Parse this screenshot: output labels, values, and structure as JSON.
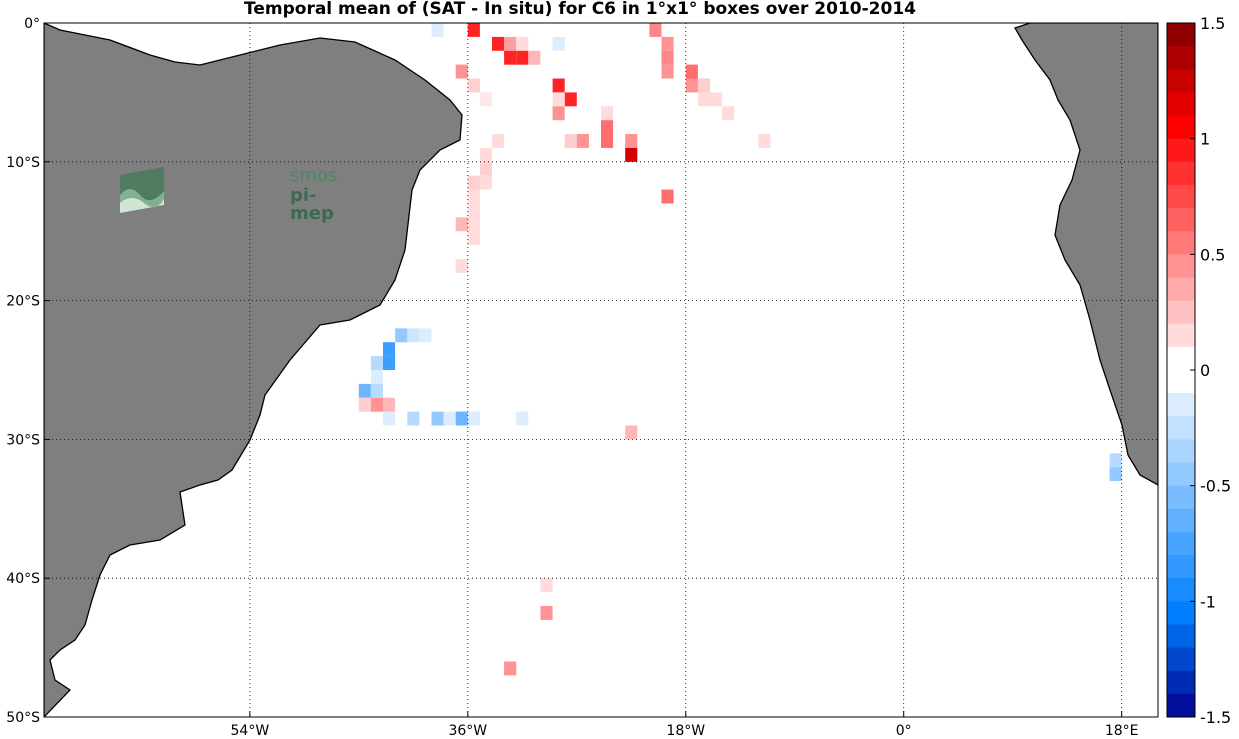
{
  "chart_data": {
    "type": "heatmap",
    "title": "Temporal mean of (SAT - In situ) for C6 in 1°x1° boxes over 2010-2014",
    "lon_range": [
      -71,
      21
    ],
    "lat_range": [
      -50,
      0
    ],
    "x_ticks": [
      "54°W",
      "36°W",
      "18°W",
      "0°",
      "18°E"
    ],
    "y_ticks": [
      "0°",
      "10°S",
      "20°S",
      "30°S",
      "40°S",
      "50°S"
    ],
    "grid": "dotted",
    "colorbar": {
      "min": -1.5,
      "max": 1.5,
      "levels": 30,
      "ticks": [
        "1.5",
        "1",
        "0.5",
        "0",
        "-0.5",
        "-1",
        "-1.5"
      ],
      "low_color": "#00008f",
      "mid_color": "#ffffff",
      "high_color": "#800000"
    },
    "cells": [
      {
        "lon": -35.5,
        "lat": -0.5,
        "v": 0.9
      },
      {
        "lon": -33.5,
        "lat": -1.5,
        "v": 0.9
      },
      {
        "lon": -32.5,
        "lat": -1.5,
        "v": 0.4
      },
      {
        "lon": -31.5,
        "lat": -1.5,
        "v": 0.15
      },
      {
        "lon": -32.5,
        "lat": -2.5,
        "v": 0.9
      },
      {
        "lon": -31.5,
        "lat": -2.5,
        "v": 0.9
      },
      {
        "lon": -30.5,
        "lat": -2.5,
        "v": 0.3
      },
      {
        "lon": -28.5,
        "lat": -1.5,
        "v": -0.15
      },
      {
        "lon": -38.5,
        "lat": -0.5,
        "v": -0.15
      },
      {
        "lon": -36.5,
        "lat": -3.5,
        "v": 0.45
      },
      {
        "lon": -35.5,
        "lat": -4.5,
        "v": 0.2
      },
      {
        "lon": -34.5,
        "lat": -5.5,
        "v": 0.1
      },
      {
        "lon": -28.5,
        "lat": -4.5,
        "v": 0.9
      },
      {
        "lon": -27.5,
        "lat": -5.5,
        "v": 0.9
      },
      {
        "lon": -28.5,
        "lat": -5.5,
        "v": 0.15
      },
      {
        "lon": -28.5,
        "lat": -6.5,
        "v": 0.45
      },
      {
        "lon": -24.5,
        "lat": -6.5,
        "v": 0.15
      },
      {
        "lon": -24.5,
        "lat": -7.5,
        "v": 0.6
      },
      {
        "lon": -24.5,
        "lat": -8.5,
        "v": 0.6
      },
      {
        "lon": -27.5,
        "lat": -8.5,
        "v": 0.2
      },
      {
        "lon": -26.5,
        "lat": -8.5,
        "v": 0.45
      },
      {
        "lon": -22.5,
        "lat": -8.5,
        "v": 0.45
      },
      {
        "lon": -22.5,
        "lat": -9.5,
        "v": 1.2
      },
      {
        "lon": -20.5,
        "lat": -0.5,
        "v": 0.5
      },
      {
        "lon": -19.5,
        "lat": -1.5,
        "v": 0.45
      },
      {
        "lon": -19.5,
        "lat": -2.5,
        "v": 0.5
      },
      {
        "lon": -19.5,
        "lat": -3.5,
        "v": 0.45
      },
      {
        "lon": -17.5,
        "lat": -3.5,
        "v": 0.6
      },
      {
        "lon": -17.5,
        "lat": -4.5,
        "v": 0.45
      },
      {
        "lon": -16.5,
        "lat": -4.5,
        "v": 0.2
      },
      {
        "lon": -16.5,
        "lat": -5.5,
        "v": 0.15
      },
      {
        "lon": -15.5,
        "lat": -5.5,
        "v": 0.15
      },
      {
        "lon": -14.5,
        "lat": -6.5,
        "v": 0.15
      },
      {
        "lon": -11.5,
        "lat": -8.5,
        "v": 0.15
      },
      {
        "lon": -19.5,
        "lat": -12.5,
        "v": 0.6
      },
      {
        "lon": -33.5,
        "lat": -8.5,
        "v": 0.15
      },
      {
        "lon": -34.5,
        "lat": -9.5,
        "v": 0.15
      },
      {
        "lon": -34.5,
        "lat": -10.5,
        "v": 0.2
      },
      {
        "lon": -34.5,
        "lat": -11.5,
        "v": 0.15
      },
      {
        "lon": -35.5,
        "lat": -11.5,
        "v": 0.2
      },
      {
        "lon": -35.5,
        "lat": -12.5,
        "v": 0.15
      },
      {
        "lon": -35.5,
        "lat": -13.5,
        "v": 0.15
      },
      {
        "lon": -35.5,
        "lat": -14.5,
        "v": 0.15
      },
      {
        "lon": -35.5,
        "lat": -15.5,
        "v": 0.15
      },
      {
        "lon": -36.5,
        "lat": -14.5,
        "v": 0.3
      },
      {
        "lon": -36.5,
        "lat": -17.5,
        "v": 0.15
      },
      {
        "lon": -39.5,
        "lat": -22.5,
        "v": -0.15
      },
      {
        "lon": -40.5,
        "lat": -22.5,
        "v": -0.2
      },
      {
        "lon": -41.5,
        "lat": -22.5,
        "v": -0.45
      },
      {
        "lon": -42.5,
        "lat": -23.5,
        "v": -0.8
      },
      {
        "lon": -42.5,
        "lat": -24.5,
        "v": -0.8
      },
      {
        "lon": -43.5,
        "lat": -24.5,
        "v": -0.3
      },
      {
        "lon": -43.5,
        "lat": -25.5,
        "v": -0.15
      },
      {
        "lon": -44.5,
        "lat": -26.5,
        "v": -0.6
      },
      {
        "lon": -43.5,
        "lat": -26.5,
        "v": -0.3
      },
      {
        "lon": -44.5,
        "lat": -27.5,
        "v": 0.2
      },
      {
        "lon": -43.5,
        "lat": -27.5,
        "v": 0.45
      },
      {
        "lon": -42.5,
        "lat": -27.5,
        "v": 0.3
      },
      {
        "lon": -42.5,
        "lat": -28.5,
        "v": -0.15
      },
      {
        "lon": -40.5,
        "lat": -28.5,
        "v": -0.3
      },
      {
        "lon": -38.5,
        "lat": -28.5,
        "v": -0.45
      },
      {
        "lon": -37.5,
        "lat": -28.5,
        "v": -0.15
      },
      {
        "lon": -36.5,
        "lat": -28.5,
        "v": -0.6
      },
      {
        "lon": -35.5,
        "lat": -28.5,
        "v": -0.15
      },
      {
        "lon": -31.5,
        "lat": -28.5,
        "v": -0.15
      },
      {
        "lon": -22.5,
        "lat": -29.5,
        "v": 0.3
      },
      {
        "lon": -29.5,
        "lat": -40.5,
        "v": 0.15
      },
      {
        "lon": -29.5,
        "lat": -42.5,
        "v": 0.45
      },
      {
        "lon": -32.5,
        "lat": -46.5,
        "v": 0.45
      },
      {
        "lon": 17.5,
        "lat": -31.5,
        "v": -0.3
      },
      {
        "lon": 17.5,
        "lat": -32.5,
        "v": -0.45
      }
    ]
  },
  "logo": {
    "line1": "smos",
    "line2": "pi-mep"
  }
}
